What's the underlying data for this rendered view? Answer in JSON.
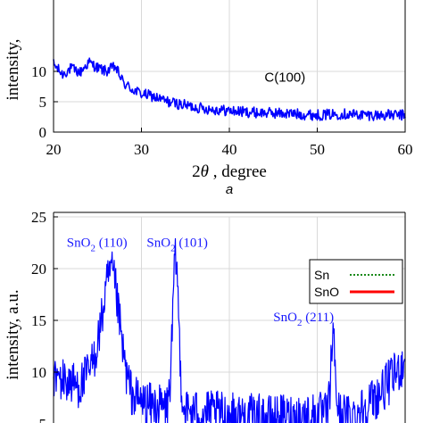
{
  "chart_data": [
    {
      "type": "line",
      "panel_label": "a",
      "xlabel": "2θ , degree",
      "ylabel": "intensity,",
      "xlim": [
        20,
        60
      ],
      "ylim": [
        0,
        11
      ],
      "xticks": [
        20,
        30,
        40,
        50,
        60
      ],
      "yticks": [
        0,
        5,
        10
      ],
      "grid": true,
      "annotations": [
        {
          "text": "C(100)",
          "x": 44.0,
          "y": 8.3
        }
      ],
      "series": [
        {
          "color": "#0000ff",
          "keypoints": [
            [
              20,
              11.2
            ],
            [
              21,
              9.5
            ],
            [
              22,
              10.5
            ],
            [
              23,
              9.8
            ],
            [
              24,
              11.5
            ],
            [
              25,
              10.6
            ],
            [
              26,
              10.0
            ],
            [
              27,
              10.8
            ],
            [
              28,
              8.0
            ],
            [
              29,
              7.0
            ],
            [
              30,
              6.3
            ],
            [
              31,
              6.0
            ],
            [
              32,
              5.5
            ],
            [
              33,
              5.0
            ],
            [
              35,
              4.4
            ],
            [
              37,
              3.9
            ],
            [
              40,
              3.5
            ],
            [
              43,
              3.2
            ],
            [
              46,
              3.1
            ],
            [
              50,
              2.8
            ],
            [
              53,
              3.0
            ],
            [
              56,
              2.8
            ],
            [
              60,
              2.8
            ]
          ],
          "noise": 0.9
        }
      ]
    },
    {
      "type": "line",
      "xlabel": "",
      "ylabel": "intensity, a.u.",
      "xlim": [
        20,
        60
      ],
      "ylim": [
        5,
        25
      ],
      "yticks": [
        5,
        10,
        15,
        20,
        25
      ],
      "grid": true,
      "annotations": [
        {
          "text": "SnO2 (110)",
          "main": "SnO",
          "sub": "2",
          "tail": " (110)",
          "x": 21.5,
          "y": 22.1
        },
        {
          "text": "SnO2 (101)",
          "main": "SnO",
          "sub": "2",
          "tail": " (101)",
          "x": 30.6,
          "y": 22.1
        },
        {
          "text": "SnO2 (211)",
          "main": "SnO",
          "sub": "2",
          "tail": " (211)",
          "x": 45.0,
          "y": 14.9
        }
      ],
      "legend": {
        "placement": "top-right",
        "entries": [
          {
            "name": "Sn",
            "color": "#1a8a1a",
            "style": "dotted"
          },
          {
            "name": "SnO",
            "color": "#ff0000",
            "style": "solid"
          }
        ]
      },
      "series": [
        {
          "color": "#0000ff",
          "peaks": [
            [
              26.6,
              19.5,
              0.9
            ],
            [
              33.9,
              20.8,
              0.35
            ],
            [
              51.8,
              13.3,
              0.25
            ]
          ],
          "baseline": [
            [
              20,
              9.5
            ],
            [
              23,
              8.7
            ],
            [
              25,
              11.0
            ],
            [
              27,
              9.5
            ],
            [
              29,
              7.5
            ],
            [
              31,
              6.8
            ],
            [
              35,
              6.2
            ],
            [
              40,
              5.9
            ],
            [
              45,
              5.6
            ],
            [
              50,
              5.9
            ],
            [
              54,
              5.8
            ],
            [
              57,
              7.8
            ],
            [
              60,
              11.0
            ]
          ],
          "noise": 2.2
        }
      ]
    }
  ]
}
